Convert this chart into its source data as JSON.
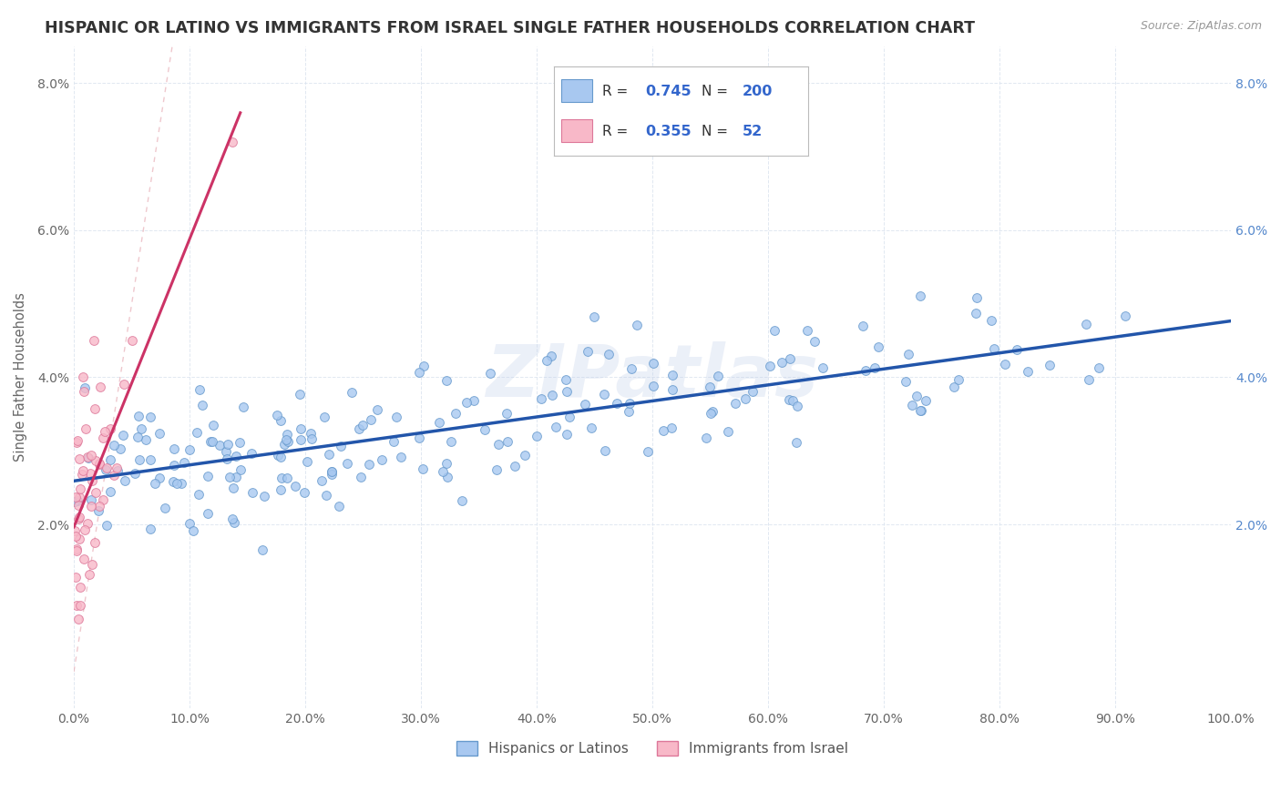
{
  "title": "HISPANIC OR LATINO VS IMMIGRANTS FROM ISRAEL SINGLE FATHER HOUSEHOLDS CORRELATION CHART",
  "source": "Source: ZipAtlas.com",
  "xlabel": "",
  "ylabel": "Single Father Households",
  "xlim": [
    0,
    1.0
  ],
  "ylim": [
    -0.005,
    0.085
  ],
  "xticks": [
    0.0,
    0.1,
    0.2,
    0.3,
    0.4,
    0.5,
    0.6,
    0.7,
    0.8,
    0.9,
    1.0
  ],
  "yticks_left": [
    0.02,
    0.04,
    0.06,
    0.08
  ],
  "yticks_right": [
    0.02,
    0.04,
    0.06,
    0.08
  ],
  "series1_color": "#a8c8f0",
  "series1_edge": "#6699cc",
  "series2_color": "#f8b8c8",
  "series2_edge": "#dd7799",
  "trendline1_color": "#2255aa",
  "trendline2_color": "#cc3366",
  "diagonal_color": "#e8b0b8",
  "R1": 0.745,
  "N1": 200,
  "R2": 0.355,
  "N2": 52,
  "legend_label1": "Hispanics or Latinos",
  "legend_label2": "Immigrants from Israel",
  "watermark": "ZIPatlas",
  "background_color": "#ffffff",
  "grid_color": "#dde5f0",
  "title_color": "#333333",
  "title_fontsize": 12.5,
  "right_tick_color": "#5588cc",
  "axis_label_color": "#666666"
}
